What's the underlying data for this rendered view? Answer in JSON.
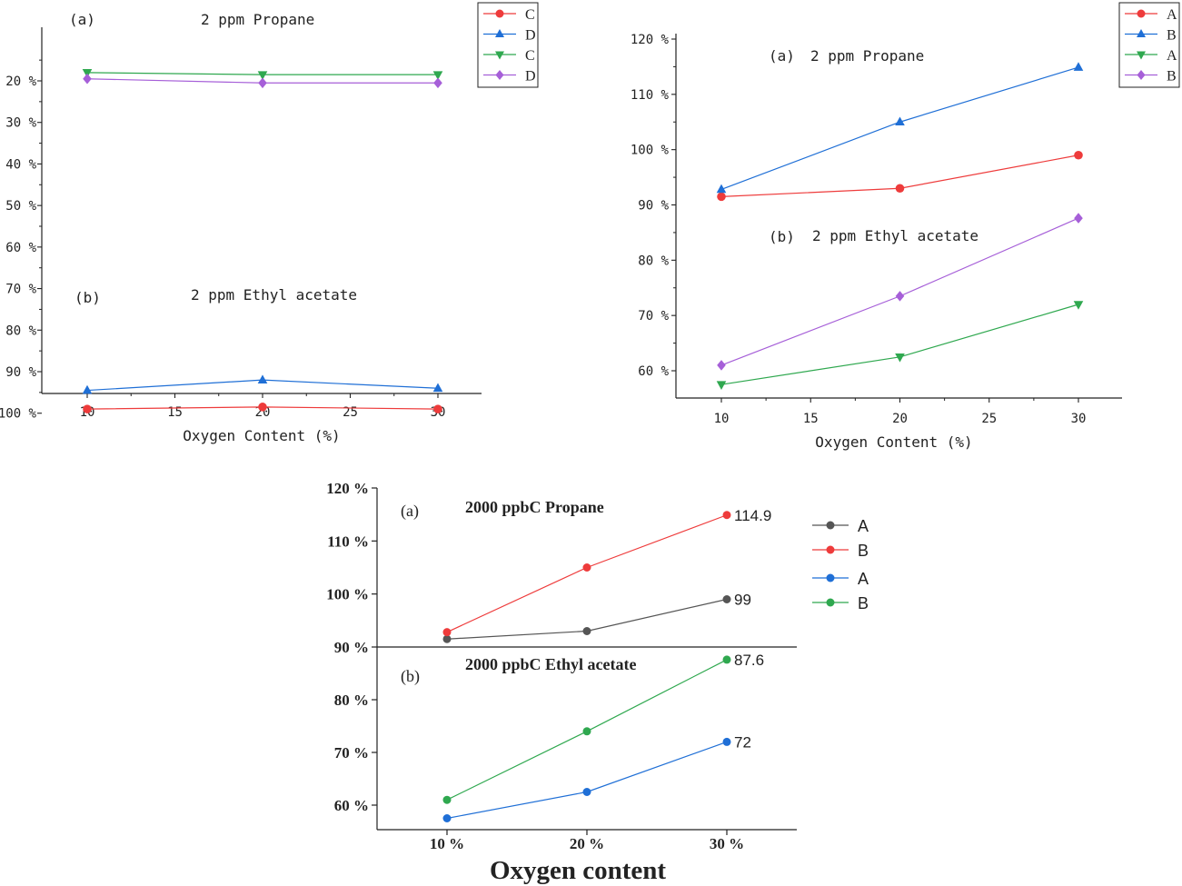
{
  "chart_data": [
    {
      "type": "line",
      "panel": "top-left",
      "annotations": [
        {
          "label": "(a)",
          "text": "2 ppm Propane"
        },
        {
          "label": "(b)",
          "text": "2 ppm Ethyl acetate"
        }
      ],
      "xlabel": "Oxygen Content (%)",
      "xlim": [
        10,
        30
      ],
      "x_ticks": [
        "10",
        "15",
        "20",
        "25",
        "30"
      ],
      "ylim": [
        17,
        100
      ],
      "y_ticks": [
        "20 %",
        "30 %",
        "40 %",
        "50 %",
        "60 %",
        "70 %",
        "80 %",
        "90 %",
        "100 %"
      ],
      "x": [
        10,
        20,
        30
      ],
      "series": [
        {
          "name": "C",
          "color": "#ee3b3b",
          "marker": "circle",
          "values": [
            99,
            98.5,
            99
          ]
        },
        {
          "name": "D",
          "color": "#1f6fd6",
          "marker": "triangle-up",
          "values": [
            94.5,
            92,
            94
          ]
        },
        {
          "name": "C",
          "color": "#2fa84f",
          "marker": "triangle-down",
          "values": [
            18,
            18.5,
            18.5
          ]
        },
        {
          "name": "D",
          "color": "#a65fd8",
          "marker": "diamond",
          "values": [
            19.5,
            20.5,
            20.5
          ]
        }
      ],
      "legend_position": "top-right",
      "grid": false
    },
    {
      "type": "line",
      "panel": "top-right",
      "annotations": [
        {
          "label": "(a)",
          "text": "2 ppm Propane"
        },
        {
          "label": "(b)",
          "text": "2 ppm Ethyl acetate"
        }
      ],
      "xlabel": "Oxygen Content (%)",
      "xlim": [
        10,
        30
      ],
      "x_ticks": [
        "10",
        "15",
        "20",
        "25",
        "30"
      ],
      "ylim": [
        55,
        120
      ],
      "y_ticks": [
        "60 %",
        "70 %",
        "80 %",
        "90 %",
        "100 %",
        "110 %",
        "120 %"
      ],
      "x": [
        10,
        20,
        30
      ],
      "series": [
        {
          "name": "A",
          "color": "#ee3b3b",
          "marker": "circle",
          "values": [
            91.5,
            93,
            99
          ]
        },
        {
          "name": "B",
          "color": "#1f6fd6",
          "marker": "triangle-up",
          "values": [
            92.8,
            105,
            114.9
          ]
        },
        {
          "name": "A",
          "color": "#2fa84f",
          "marker": "triangle-down",
          "values": [
            57.5,
            62.5,
            72
          ]
        },
        {
          "name": "B",
          "color": "#a65fd8",
          "marker": "diamond",
          "values": [
            61,
            73.5,
            87.6
          ]
        }
      ],
      "legend_position": "top-right",
      "grid": false
    },
    {
      "type": "line",
      "panel": "bottom",
      "annotations": [
        {
          "label": "(a)",
          "text": "2000 ppbC  Propane"
        },
        {
          "label": "(b)",
          "text": "2000 ppbC  Ethyl acetate"
        }
      ],
      "xlabel": "Oxygen content",
      "categories": [
        "10 %",
        "20 %",
        "30 %"
      ],
      "ylim": [
        55,
        120
      ],
      "y_ticks": [
        "60 %",
        "70 %",
        "80 %",
        "90 %",
        "100 %",
        "110 %",
        "120 %"
      ],
      "series": [
        {
          "name": "A",
          "color": "#555555",
          "marker": "circle",
          "values": [
            91.5,
            93,
            99
          ],
          "end_label": "99"
        },
        {
          "name": "B",
          "color": "#ee3b3b",
          "marker": "circle",
          "values": [
            92.8,
            105,
            114.9
          ],
          "end_label": "114.9"
        },
        {
          "name": "A",
          "color": "#1f6fd6",
          "marker": "circle",
          "values": [
            57.5,
            62.5,
            72
          ],
          "end_label": "72"
        },
        {
          "name": "B",
          "color": "#2fa84f",
          "marker": "circle",
          "values": [
            61,
            74,
            87.6
          ],
          "end_label": "87.6"
        }
      ],
      "legend_position": "right",
      "grid": false
    }
  ]
}
